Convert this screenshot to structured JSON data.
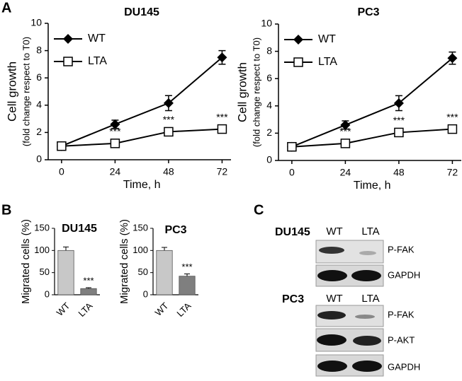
{
  "panel_labels": [
    "A",
    "B",
    "C"
  ],
  "chart_data": [
    {
      "type": "line",
      "title": "DU145",
      "xlabel": "Time, h",
      "ylabel": [
        "Cell growth",
        "(fold change respect to T0)"
      ],
      "x": [
        0,
        24,
        48,
        72
      ],
      "xlim": [
        -6,
        76
      ],
      "xticks": [
        0,
        24,
        48,
        72
      ],
      "ylim": [
        0,
        10
      ],
      "yticks": [
        0,
        2,
        4,
        6,
        8,
        10
      ],
      "legend": "upper left",
      "series": [
        {
          "name": "WT",
          "color": "#000000",
          "marker": "diamond",
          "values": [
            1,
            2.6,
            4.15,
            7.5
          ],
          "errors": [
            0,
            0.3,
            0.55,
            0.5
          ]
        },
        {
          "name": "LTA",
          "color": "#000000",
          "marker": "open-square",
          "values": [
            1,
            1.2,
            2.05,
            2.25
          ],
          "errors": [
            0,
            0.2,
            0.2,
            0.15
          ]
        }
      ],
      "annotations": [
        null,
        "***",
        "***",
        "***"
      ]
    },
    {
      "type": "line",
      "title": "PC3",
      "xlabel": "Time, h",
      "ylabel": [
        "Cell growth",
        "(fold change respect to T0)"
      ],
      "x": [
        0,
        24,
        48,
        72
      ],
      "xlim": [
        -6,
        76
      ],
      "xticks": [
        0,
        24,
        48,
        72
      ],
      "ylim": [
        0,
        10
      ],
      "yticks": [
        0,
        2,
        4,
        6,
        8,
        10
      ],
      "legend": "upper left",
      "series": [
        {
          "name": "WT",
          "color": "#000000",
          "marker": "diamond",
          "values": [
            1,
            2.6,
            4.2,
            7.5
          ],
          "errors": [
            0,
            0.3,
            0.55,
            0.45
          ]
        },
        {
          "name": "LTA",
          "color": "#000000",
          "marker": "open-square",
          "values": [
            1,
            1.25,
            2.05,
            2.3
          ],
          "errors": [
            0,
            0.2,
            0.2,
            0.15
          ]
        }
      ],
      "annotations": [
        null,
        "***",
        "***",
        "***"
      ]
    },
    {
      "type": "bar",
      "title": "DU145",
      "ylabel": "Migrated cells (%)",
      "categories": [
        "WT",
        "LTA"
      ],
      "values": [
        100,
        14
      ],
      "errors": [
        8,
        2
      ],
      "colors": [
        "#c8c8c8",
        "#7f7f7f"
      ],
      "ylim": [
        0,
        150
      ],
      "yticks": [
        0,
        50,
        100,
        150
      ],
      "annotations": [
        null,
        "***"
      ]
    },
    {
      "type": "bar",
      "title": "PC3",
      "ylabel": "Migrated cells (%)",
      "categories": [
        "WT",
        "LTA"
      ],
      "values": [
        100,
        42
      ],
      "errors": [
        7,
        5
      ],
      "colors": [
        "#c8c8c8",
        "#7f7f7f"
      ],
      "ylim": [
        0,
        150
      ],
      "yticks": [
        0,
        50,
        100,
        150
      ],
      "annotations": [
        null,
        "***"
      ]
    }
  ],
  "blot": {
    "groups": [
      {
        "cell_line": "DU145",
        "lanes": [
          "WT",
          "LTA"
        ],
        "rows": [
          "P-FAK",
          "GAPDH"
        ]
      },
      {
        "cell_line": "PC3",
        "lanes": [
          "WT",
          "LTA"
        ],
        "rows": [
          "P-FAK",
          "P-AKT",
          "GAPDH"
        ]
      }
    ]
  }
}
